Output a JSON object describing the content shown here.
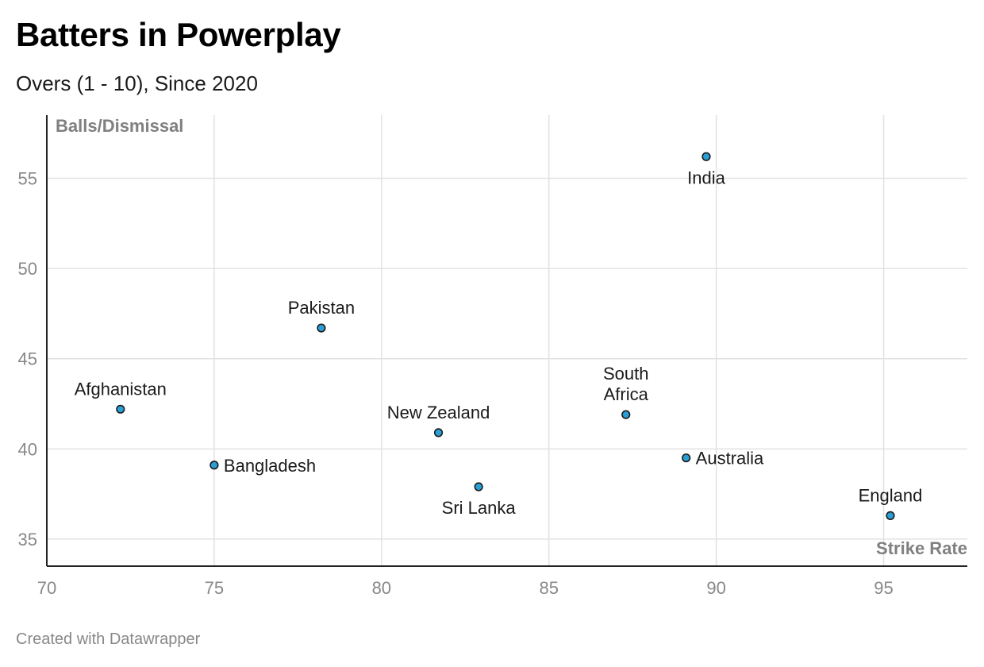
{
  "title": "Batters in Powerplay",
  "subtitle": "Overs (1 - 10), Since 2020",
  "footer": "Created with Datawrapper",
  "colors": {
    "point": "#2a9fd6",
    "grid": "#e2e2e2",
    "axis": "#222222"
  },
  "chart_data": {
    "type": "scatter",
    "xlabel": "Strike Rate",
    "ylabel": "Balls/Dismissal",
    "xlim": [
      70,
      97.5
    ],
    "ylim": [
      33.5,
      58.5
    ],
    "xticks": [
      70,
      75,
      80,
      85,
      90,
      95
    ],
    "yticks": [
      35,
      40,
      45,
      50,
      55
    ],
    "grid": true,
    "points": [
      {
        "label": "India",
        "x": 89.7,
        "y": 56.2,
        "label_pos": "below"
      },
      {
        "label": "Pakistan",
        "x": 78.2,
        "y": 46.7,
        "label_pos": "above"
      },
      {
        "label": "Afghanistan",
        "x": 72.2,
        "y": 42.2,
        "label_pos": "above"
      },
      {
        "label": "New Zealand",
        "x": 81.7,
        "y": 40.9,
        "label_pos": "above"
      },
      {
        "label": "South Africa",
        "label_lines": [
          "South",
          "Africa"
        ],
        "x": 87.3,
        "y": 41.9,
        "label_pos": "above"
      },
      {
        "label": "Bangladesh",
        "x": 75.0,
        "y": 39.1,
        "label_pos": "right"
      },
      {
        "label": "Australia",
        "x": 89.1,
        "y": 39.5,
        "label_pos": "right"
      },
      {
        "label": "Sri Lanka",
        "x": 82.9,
        "y": 37.9,
        "label_pos": "below"
      },
      {
        "label": "England",
        "x": 95.2,
        "y": 36.3,
        "label_pos": "above"
      }
    ]
  }
}
